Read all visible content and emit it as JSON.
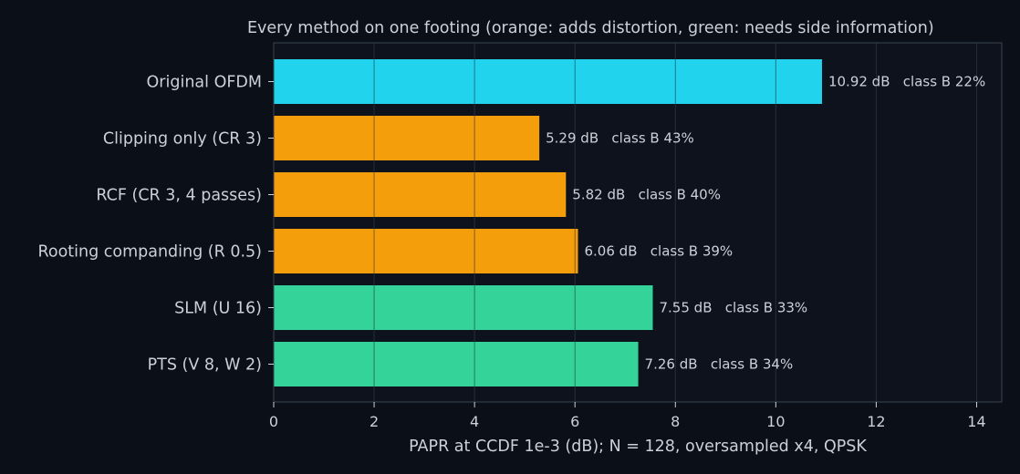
{
  "chart_data": {
    "type": "bar",
    "orientation": "horizontal",
    "title": "Every method on one footing (orange: adds distortion, green: needs side information)",
    "xlabel": "PAPR at CCDF 1e-3 (dB); N = 128, oversampled x4, QPSK",
    "ylabel": "",
    "xlim": [
      0,
      14.5
    ],
    "xticks": [
      0,
      2,
      4,
      6,
      8,
      10,
      12,
      14
    ],
    "grid": "vertical",
    "categories": [
      "Original OFDM",
      "Clipping only (CR 3)",
      "RCF (CR 3, 4 passes)",
      "Rooting companding (R 0.5)",
      "SLM (U 16)",
      "PTS (V 8, W 2)"
    ],
    "values": [
      10.92,
      5.29,
      5.82,
      6.06,
      7.55,
      7.26
    ],
    "data_labels": [
      "10.92 dB   class B 22%",
      "5.29 dB   class B 43%",
      "5.82 dB   class B 40%",
      "6.06 dB   class B 39%",
      "7.55 dB   class B 33%",
      "7.26 dB   class B 34%"
    ],
    "bar_colors": [
      "#22d3ee",
      "#f59e0b",
      "#f59e0b",
      "#f59e0b",
      "#34d399",
      "#34d399"
    ]
  },
  "colors": {
    "background": "#0b0f17",
    "plot_background": "#0d121c",
    "grid": "#26303d",
    "axis": "#3a4452",
    "text": "#c9d1d9",
    "baseline": "#22d3ee",
    "distortion": "#f59e0b",
    "side_information": "#34d399"
  }
}
